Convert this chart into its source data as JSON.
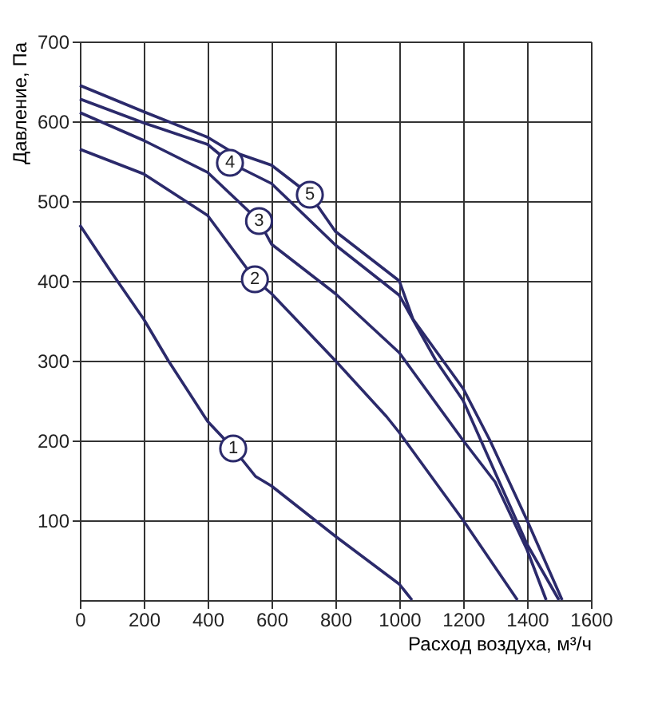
{
  "chart_data": {
    "type": "line",
    "xlabel": "Расход воздуха, м³/ч",
    "ylabel": "Давление, Па",
    "xlim": [
      0,
      1600
    ],
    "xticks": [
      0,
      200,
      400,
      600,
      800,
      1000,
      1200,
      1400,
      1600
    ],
    "ylim": [
      0,
      700
    ],
    "yticks": [
      100,
      200,
      300,
      400,
      500,
      600,
      700
    ],
    "grid": true,
    "marker": "none",
    "line_style": "solid",
    "series": [
      {
        "color": "#2b2a6b",
        "x": [
          0,
          100,
          200,
          277,
          400,
          480,
          550,
          600,
          800,
          1000,
          1040
        ],
        "values": [
          470,
          410,
          352,
          300,
          224,
          190,
          155,
          143,
          80,
          20,
          0
        ]
      },
      {
        "color": "#2b2a6b",
        "x": [
          0,
          200,
          400,
          548,
          600,
          800,
          960,
          1000,
          1200,
          1370
        ],
        "values": [
          565,
          534,
          482,
          402,
          384,
          300,
          230,
          210,
          100,
          0
        ]
      },
      {
        "color": "#2b2a6b",
        "x": [
          0,
          200,
          400,
          561,
          600,
          800,
          1000,
          1200,
          1300,
          1400,
          1460
        ],
        "values": [
          611,
          576,
          536,
          475,
          446,
          384,
          310,
          200,
          148,
          63,
          0
        ]
      },
      {
        "color": "#2b2a6b",
        "x": [
          0,
          200,
          400,
          470,
          600,
          800,
          1000,
          1115,
          1200,
          1400,
          1500
        ],
        "values": [
          628,
          598,
          571,
          548,
          522,
          445,
          382,
          300,
          250,
          70,
          0
        ]
      },
      {
        "color": "#2b2a6b",
        "x": [
          0,
          200,
          400,
          470,
          600,
          720,
          800,
          1000,
          1043,
          1200,
          1284,
          1400,
          1510
        ],
        "values": [
          645,
          612,
          580,
          563,
          545,
          508,
          462,
          400,
          352,
          265,
          200,
          100,
          0
        ]
      }
    ],
    "annotations": [
      {
        "text": "1",
        "x": 480,
        "y": 190
      },
      {
        "text": "2",
        "x": 548,
        "y": 402
      },
      {
        "text": "3",
        "x": 561,
        "y": 475
      },
      {
        "text": "4",
        "x": 470,
        "y": 548
      },
      {
        "text": "5",
        "x": 720,
        "y": 508
      }
    ]
  }
}
